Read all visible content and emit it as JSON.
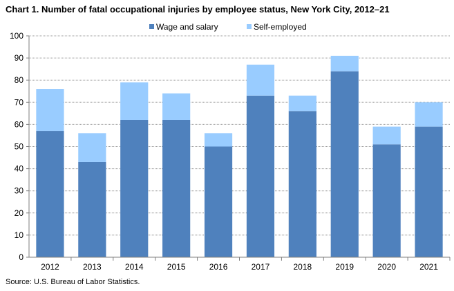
{
  "title": "Chart 1. Number of fatal occupational injuries by employee status,  New York City, 2012–21",
  "source": "Source: U.S. Bureau of Labor Statistics.",
  "colors": {
    "wage": "#4f81bd",
    "self": "#99ccff",
    "grid": "#9a9a9a",
    "axis": "#7f7f7f"
  },
  "chart_data": {
    "type": "bar",
    "stacked": true,
    "categories": [
      "2012",
      "2013",
      "2014",
      "2015",
      "2016",
      "2017",
      "2018",
      "2019",
      "2020",
      "2021"
    ],
    "series": [
      {
        "name": "Wage and salary",
        "values": [
          57,
          43,
          62,
          62,
          50,
          73,
          66,
          84,
          51,
          59
        ]
      },
      {
        "name": "Self-employed",
        "values": [
          19,
          13,
          17,
          12,
          6,
          14,
          7,
          7,
          8,
          11
        ]
      }
    ],
    "ylim": [
      0,
      100
    ],
    "yticks": [
      "0",
      "10",
      "20",
      "30",
      "40",
      "50",
      "60",
      "70",
      "80",
      "90",
      "100"
    ],
    "grid": true,
    "legend": "top"
  }
}
